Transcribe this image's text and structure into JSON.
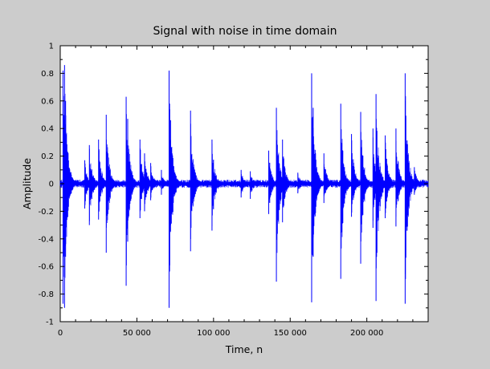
{
  "chart_data": {
    "type": "line",
    "title": "Signal with noise in time domain",
    "xlabel": "Time, n",
    "ylabel": "Amplitude",
    "xlim": [
      0,
      240000
    ],
    "ylim": [
      -1,
      1
    ],
    "x_ticks": [
      0,
      50000,
      100000,
      150000,
      200000
    ],
    "x_tick_labels": [
      "0",
      "50 000",
      "100 000",
      "150 000",
      "200 000"
    ],
    "y_ticks": [
      -1,
      -0.8,
      -0.6,
      -0.4,
      -0.2,
      0,
      0.2,
      0.4,
      0.6,
      0.8,
      1
    ],
    "y_tick_labels": [
      "-1",
      "-0.8",
      "-0.6",
      "-0.4",
      "-0.2",
      "0",
      "0.2",
      "0.4",
      "0.6",
      "0.8",
      "1"
    ],
    "grid": false,
    "series_color": "#0000ff",
    "noise_floor": 0.02,
    "transients": [
      {
        "t": 1800,
        "pos": 0.82,
        "neg": -0.87
      },
      {
        "t": 2800,
        "pos": 0.86,
        "neg": -0.9
      },
      {
        "t": 3500,
        "pos": 0.6,
        "neg": -0.53
      },
      {
        "t": 16000,
        "pos": 0.17,
        "neg": -0.18
      },
      {
        "t": 19000,
        "pos": 0.28,
        "neg": -0.3
      },
      {
        "t": 25000,
        "pos": 0.32,
        "neg": -0.26
      },
      {
        "t": 30000,
        "pos": 0.5,
        "neg": -0.5
      },
      {
        "t": 43000,
        "pos": 0.63,
        "neg": -0.74
      },
      {
        "t": 44000,
        "pos": 0.47,
        "neg": -0.42
      },
      {
        "t": 52000,
        "pos": 0.32,
        "neg": -0.25
      },
      {
        "t": 55000,
        "pos": 0.22,
        "neg": -0.2
      },
      {
        "t": 59000,
        "pos": 0.15,
        "neg": -0.12
      },
      {
        "t": 66000,
        "pos": 0.1,
        "neg": -0.08
      },
      {
        "t": 71000,
        "pos": 0.82,
        "neg": -0.9
      },
      {
        "t": 72000,
        "pos": 0.46,
        "neg": -0.3
      },
      {
        "t": 85000,
        "pos": 0.53,
        "neg": -0.49
      },
      {
        "t": 99000,
        "pos": 0.32,
        "neg": -0.34
      },
      {
        "t": 118000,
        "pos": 0.1,
        "neg": -0.1
      },
      {
        "t": 124000,
        "pos": 0.09,
        "neg": -0.11
      },
      {
        "t": 136000,
        "pos": 0.24,
        "neg": -0.22
      },
      {
        "t": 141000,
        "pos": 0.55,
        "neg": -0.71
      },
      {
        "t": 145000,
        "pos": 0.32,
        "neg": -0.28
      },
      {
        "t": 155000,
        "pos": 0.08,
        "neg": -0.07
      },
      {
        "t": 164000,
        "pos": 0.8,
        "neg": -0.86
      },
      {
        "t": 165000,
        "pos": 0.55,
        "neg": -0.53
      },
      {
        "t": 172000,
        "pos": 0.22,
        "neg": -0.14
      },
      {
        "t": 183000,
        "pos": 0.58,
        "neg": -0.69
      },
      {
        "t": 190000,
        "pos": 0.36,
        "neg": -0.24
      },
      {
        "t": 196000,
        "pos": 0.52,
        "neg": -0.58
      },
      {
        "t": 204000,
        "pos": 0.4,
        "neg": -0.32
      },
      {
        "t": 206000,
        "pos": 0.65,
        "neg": -0.85
      },
      {
        "t": 212000,
        "pos": 0.35,
        "neg": -0.25
      },
      {
        "t": 219000,
        "pos": 0.4,
        "neg": -0.31
      },
      {
        "t": 225000,
        "pos": 0.8,
        "neg": -0.87
      },
      {
        "t": 231000,
        "pos": 0.12,
        "neg": -0.08
      }
    ]
  }
}
